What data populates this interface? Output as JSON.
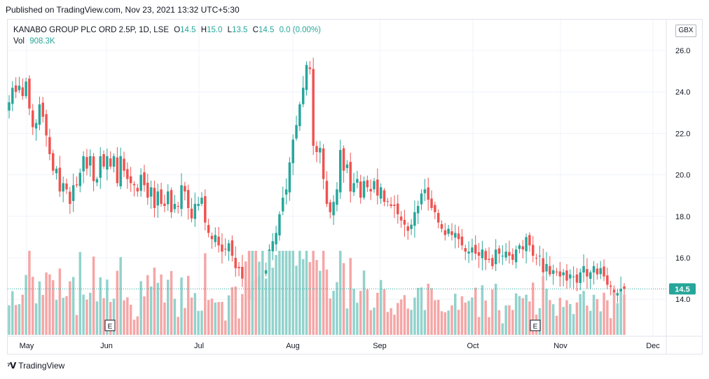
{
  "published": "Published on TradingView.com, Nov 23, 2021 13:32 UTC+5:30",
  "legend": {
    "symbol": "KANABO GROUP PLC ORD 2.5P, 1D, LSE",
    "open_k": "O",
    "open": "14.5",
    "high_k": "H",
    "high": "15.0",
    "low_k": "L",
    "low": "13.5",
    "close_k": "C",
    "close": "14.5",
    "change": "0.0 (0.00%)",
    "vol_k": "Vol",
    "vol": "908.3K"
  },
  "currency": "GBX",
  "brand": "TradingView",
  "colors": {
    "up": "#26a69a",
    "down": "#ef5350",
    "up_vol": "#92d2cc",
    "down_vol": "#f5a6a6",
    "grid": "#f0f3fa"
  },
  "chart_data": {
    "type": "candlestick",
    "ylim": [
      12.5,
      26.5
    ],
    "y_ticks": [
      "14.0",
      "16.0",
      "18.0",
      "20.0",
      "22.0",
      "24.0",
      "26.0"
    ],
    "x_ticks": [
      "May",
      "Jun",
      "Jul",
      "Aug",
      "Sep",
      "Oct",
      "Nov",
      "Dec"
    ],
    "last_price": "14.5",
    "earnings_markers": [
      "E",
      "E"
    ],
    "closes": [
      23.5,
      24.2,
      24.0,
      24.3,
      23.8,
      24.5,
      23.2,
      22.3,
      22.5,
      23.4,
      22.8,
      21.9,
      21.0,
      20.2,
      20.3,
      19.2,
      19.6,
      19.3,
      18.6,
      19.5,
      19.5,
      20.1,
      20.9,
      20.3,
      20.9,
      19.7,
      19.8,
      20.9,
      20.4,
      20.9,
      20.4,
      20.9,
      19.6,
      20.9,
      20.2,
      19.8,
      19.6,
      19.5,
      19.2,
      20.0,
      19.5,
      18.9,
      19.4,
      18.4,
      19.2,
      18.6,
      18.5,
      19.2,
      18.2,
      18.6,
      18.5,
      19.5,
      19.2,
      18.4,
      17.9,
      18.6,
      18.6,
      18.9,
      17.7,
      17.2,
      16.9,
      17.1,
      16.6,
      16.3,
      16.4,
      16.7,
      16.1,
      15.5,
      15.5,
      15.0,
      14.4,
      14.0,
      14.9,
      14.6,
      15.1,
      15.2,
      15.4,
      16.4,
      16.8,
      17.2,
      18.1,
      18.9,
      19.3,
      20.6,
      21.7,
      22.4,
      23.4,
      24.2,
      25.3,
      25.1,
      21.4,
      21.1,
      21.3,
      19.8,
      18.6,
      18.2,
      18.7,
      19.3,
      21.2,
      20.2,
      20.5,
      19.2,
      19.6,
      19.8,
      18.9,
      19.7,
      19.4,
      19.2,
      19.7,
      19.0,
      19.4,
      18.7,
      18.7,
      18.5,
      18.5,
      18.1,
      17.8,
      17.6,
      17.3,
      17.6,
      18.2,
      18.5,
      19.1,
      19.3,
      18.8,
      18.4,
      18.2,
      17.7,
      17.4,
      17.1,
      17.4,
      17.1,
      17.2,
      16.9,
      16.6,
      16.3,
      16.3,
      16.5,
      16.2,
      16.1,
      16.4,
      15.9,
      15.9,
      15.6,
      16.4,
      16.2,
      16.1,
      16.3,
      16.1,
      15.9,
      16.4,
      16.6,
      16.4,
      17.0,
      16.6,
      16.1,
      16.0,
      16.1,
      15.3,
      15.7,
      15.2,
      15.4,
      15.3,
      15.1,
      15.3,
      14.9,
      15.2,
      15.1,
      14.8,
      15.3,
      15.6,
      15.1,
      15.3,
      15.6,
      15.2,
      15.5,
      15.1,
      14.7,
      14.6,
      14.2,
      14.3,
      14.5,
      14.5
    ],
    "volume_max": 1900,
    "volume_unit": "K"
  }
}
